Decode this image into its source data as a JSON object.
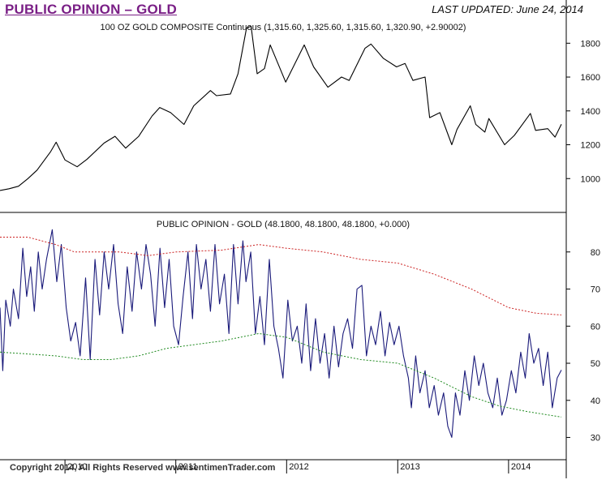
{
  "header": {
    "title": "PUBLIC OPINION – GOLD",
    "last_updated_label": "LAST UPDATED:",
    "last_updated_date": "June 24, 2014"
  },
  "footer": {
    "copyright": "Copyright 2014, All Rights Reserved   www.sentimenTrader.com"
  },
  "chart_data": [
    {
      "type": "line",
      "title": "100 OZ GOLD COMPOSITE Continuous (1,315.60, 1,325.60, 1,315.60, 1,320.90, +2.90002)",
      "ylim": [
        800,
        1950
      ],
      "y_ticks": [
        1000,
        1200,
        1400,
        1600,
        1800
      ],
      "grid": false,
      "color": "#000000",
      "series": [
        {
          "points": [
            [
              "2009-06-01",
              930
            ],
            [
              "2009-07-01",
              940
            ],
            [
              "2009-08-01",
              955
            ],
            [
              "2009-09-01",
              1000
            ],
            [
              "2009-10-01",
              1050
            ],
            [
              "2009-11-15",
              1160
            ],
            [
              "2009-12-03",
              1215
            ],
            [
              "2010-01-01",
              1110
            ],
            [
              "2010-02-10",
              1070
            ],
            [
              "2010-03-15",
              1115
            ],
            [
              "2010-05-10",
              1210
            ],
            [
              "2010-06-15",
              1250
            ],
            [
              "2010-07-20",
              1180
            ],
            [
              "2010-09-01",
              1250
            ],
            [
              "2010-10-15",
              1370
            ],
            [
              "2010-11-09",
              1420
            ],
            [
              "2010-12-15",
              1390
            ],
            [
              "2011-01-28",
              1320
            ],
            [
              "2011-03-01",
              1430
            ],
            [
              "2011-04-25",
              1520
            ],
            [
              "2011-05-15",
              1490
            ],
            [
              "2011-06-30",
              1500
            ],
            [
              "2011-07-25",
              1620
            ],
            [
              "2011-08-22",
              1890
            ],
            [
              "2011-09-06",
              1900
            ],
            [
              "2011-09-26",
              1620
            ],
            [
              "2011-10-20",
              1650
            ],
            [
              "2011-11-08",
              1790
            ],
            [
              "2011-12-29",
              1570
            ],
            [
              "2012-02-28",
              1790
            ],
            [
              "2012-03-30",
              1660
            ],
            [
              "2012-05-16",
              1540
            ],
            [
              "2012-06-30",
              1600
            ],
            [
              "2012-07-25",
              1580
            ],
            [
              "2012-09-15",
              1770
            ],
            [
              "2012-10-05",
              1795
            ],
            [
              "2012-11-15",
              1710
            ],
            [
              "2012-12-28",
              1660
            ],
            [
              "2013-01-25",
              1680
            ],
            [
              "2013-02-20",
              1580
            ],
            [
              "2013-04-01",
              1600
            ],
            [
              "2013-04-16",
              1360
            ],
            [
              "2013-05-20",
              1390
            ],
            [
              "2013-06-28",
              1200
            ],
            [
              "2013-07-15",
              1290
            ],
            [
              "2013-08-28",
              1430
            ],
            [
              "2013-09-15",
              1320
            ],
            [
              "2013-10-15",
              1275
            ],
            [
              "2013-10-28",
              1355
            ],
            [
              "2013-12-19",
              1200
            ],
            [
              "2014-01-20",
              1255
            ],
            [
              "2014-03-14",
              1385
            ],
            [
              "2014-03-31",
              1285
            ],
            [
              "2014-05-10",
              1295
            ],
            [
              "2014-06-03",
              1245
            ],
            [
              "2014-06-24",
              1321
            ]
          ]
        }
      ]
    },
    {
      "type": "line",
      "title": "PUBLIC OPINION - GOLD (48.1800, 48.1800, 48.1800, +0.000)",
      "ylim": [
        24,
        90
      ],
      "y_ticks": [
        30,
        40,
        50,
        60,
        70,
        80
      ],
      "x_ticks": [
        "2010",
        "2011",
        "2012",
        "2013",
        "2014"
      ],
      "grid": false,
      "series": [
        {
          "color": "#1a1a7a",
          "points": [
            [
              "2009-06-01",
              65
            ],
            [
              "2009-06-10",
              48
            ],
            [
              "2009-06-20",
              67
            ],
            [
              "2009-07-05",
              60
            ],
            [
              "2009-07-15",
              70
            ],
            [
              "2009-08-01",
              62
            ],
            [
              "2009-08-15",
              81
            ],
            [
              "2009-08-28",
              68
            ],
            [
              "2009-09-10",
              76
            ],
            [
              "2009-09-22",
              64
            ],
            [
              "2009-10-05",
              80
            ],
            [
              "2009-10-18",
              70
            ],
            [
              "2009-11-01",
              78
            ],
            [
              "2009-11-20",
              86
            ],
            [
              "2009-12-05",
              72
            ],
            [
              "2009-12-20",
              82
            ],
            [
              "2010-01-05",
              65
            ],
            [
              "2010-01-20",
              56
            ],
            [
              "2010-02-05",
              61
            ],
            [
              "2010-02-20",
              52
            ],
            [
              "2010-03-10",
              73
            ],
            [
              "2010-03-25",
              51
            ],
            [
              "2010-04-10",
              78
            ],
            [
              "2010-04-25",
              63
            ],
            [
              "2010-05-10",
              80
            ],
            [
              "2010-05-25",
              70
            ],
            [
              "2010-06-10",
              82
            ],
            [
              "2010-06-25",
              66
            ],
            [
              "2010-07-10",
              58
            ],
            [
              "2010-07-25",
              76
            ],
            [
              "2010-08-10",
              64
            ],
            [
              "2010-08-25",
              80
            ],
            [
              "2010-09-10",
              70
            ],
            [
              "2010-09-25",
              82
            ],
            [
              "2010-10-10",
              74
            ],
            [
              "2010-10-25",
              60
            ],
            [
              "2010-11-10",
              81
            ],
            [
              "2010-11-25",
              65
            ],
            [
              "2010-12-10",
              78
            ],
            [
              "2010-12-25",
              60
            ],
            [
              "2011-01-10",
              55
            ],
            [
              "2011-01-25",
              68
            ],
            [
              "2011-02-10",
              80
            ],
            [
              "2011-02-25",
              62
            ],
            [
              "2011-03-10",
              82
            ],
            [
              "2011-03-25",
              70
            ],
            [
              "2011-04-10",
              78
            ],
            [
              "2011-04-25",
              64
            ],
            [
              "2011-05-10",
              82
            ],
            [
              "2011-05-25",
              66
            ],
            [
              "2011-06-10",
              74
            ],
            [
              "2011-06-25",
              58
            ],
            [
              "2011-07-10",
              82
            ],
            [
              "2011-07-25",
              66
            ],
            [
              "2011-08-10",
              83
            ],
            [
              "2011-08-20",
              72
            ],
            [
              "2011-09-05",
              80
            ],
            [
              "2011-09-20",
              58
            ],
            [
              "2011-10-05",
              68
            ],
            [
              "2011-10-20",
              55
            ],
            [
              "2011-11-05",
              78
            ],
            [
              "2011-11-20",
              60
            ],
            [
              "2011-12-05",
              54
            ],
            [
              "2011-12-20",
              46
            ],
            [
              "2012-01-05",
              67
            ],
            [
              "2012-01-20",
              56
            ],
            [
              "2012-02-05",
              60
            ],
            [
              "2012-02-20",
              50
            ],
            [
              "2012-03-05",
              66
            ],
            [
              "2012-03-20",
              48
            ],
            [
              "2012-04-05",
              62
            ],
            [
              "2012-04-20",
              50
            ],
            [
              "2012-05-05",
              58
            ],
            [
              "2012-05-20",
              46
            ],
            [
              "2012-06-05",
              60
            ],
            [
              "2012-06-20",
              49
            ],
            [
              "2012-07-05",
              58
            ],
            [
              "2012-07-20",
              62
            ],
            [
              "2012-08-05",
              54
            ],
            [
              "2012-08-20",
              70
            ],
            [
              "2012-09-05",
              71
            ],
            [
              "2012-09-20",
              52
            ],
            [
              "2012-10-05",
              60
            ],
            [
              "2012-10-20",
              55
            ],
            [
              "2012-11-05",
              64
            ],
            [
              "2012-11-20",
              52
            ],
            [
              "2012-12-05",
              61
            ],
            [
              "2012-12-20",
              55
            ],
            [
              "2013-01-05",
              60
            ],
            [
              "2013-01-20",
              52
            ],
            [
              "2013-02-05",
              46
            ],
            [
              "2013-02-15",
              38
            ],
            [
              "2013-03-01",
              52
            ],
            [
              "2013-03-15",
              42
            ],
            [
              "2013-04-01",
              48
            ],
            [
              "2013-04-15",
              38
            ],
            [
              "2013-05-01",
              44
            ],
            [
              "2013-05-15",
              36
            ],
            [
              "2013-06-01",
              42
            ],
            [
              "2013-06-15",
              33
            ],
            [
              "2013-06-28",
              30
            ],
            [
              "2013-07-10",
              42
            ],
            [
              "2013-07-25",
              36
            ],
            [
              "2013-08-10",
              48
            ],
            [
              "2013-08-25",
              40
            ],
            [
              "2013-09-10",
              52
            ],
            [
              "2013-09-25",
              44
            ],
            [
              "2013-10-10",
              50
            ],
            [
              "2013-10-25",
              42
            ],
            [
              "2013-11-10",
              38
            ],
            [
              "2013-11-25",
              46
            ],
            [
              "2013-12-10",
              36
            ],
            [
              "2013-12-25",
              40
            ],
            [
              "2014-01-10",
              48
            ],
            [
              "2014-01-25",
              42
            ],
            [
              "2014-02-10",
              53
            ],
            [
              "2014-02-25",
              46
            ],
            [
              "2014-03-10",
              58
            ],
            [
              "2014-03-25",
              50
            ],
            [
              "2014-04-10",
              54
            ],
            [
              "2014-04-25",
              44
            ],
            [
              "2014-05-10",
              53
            ],
            [
              "2014-05-25",
              38
            ],
            [
              "2014-06-10",
              46
            ],
            [
              "2014-06-24",
              48.18
            ]
          ]
        },
        {
          "color": "#cc2222",
          "style": "dotted",
          "points": [
            [
              "2009-06-01",
              84
            ],
            [
              "2009-09-01",
              84
            ],
            [
              "2009-12-01",
              82
            ],
            [
              "2010-02-01",
              80
            ],
            [
              "2010-04-01",
              80
            ],
            [
              "2010-07-01",
              80
            ],
            [
              "2010-10-01",
              79
            ],
            [
              "2011-01-01",
              80
            ],
            [
              "2011-06-01",
              80.5
            ],
            [
              "2011-10-01",
              82
            ],
            [
              "2012-01-01",
              81
            ],
            [
              "2012-05-01",
              80
            ],
            [
              "2012-09-01",
              78
            ],
            [
              "2013-01-01",
              77
            ],
            [
              "2013-05-01",
              74
            ],
            [
              "2013-09-01",
              70
            ],
            [
              "2014-01-01",
              65
            ],
            [
              "2014-04-01",
              63.5
            ],
            [
              "2014-06-24",
              63
            ]
          ]
        },
        {
          "color": "#1f8a1f",
          "style": "dotted",
          "points": [
            [
              "2009-06-01",
              53
            ],
            [
              "2009-09-01",
              52.5
            ],
            [
              "2009-12-01",
              52
            ],
            [
              "2010-03-01",
              51
            ],
            [
              "2010-06-01",
              51
            ],
            [
              "2010-09-01",
              52
            ],
            [
              "2010-12-01",
              54
            ],
            [
              "2011-03-01",
              55
            ],
            [
              "2011-06-01",
              56
            ],
            [
              "2011-10-01",
              58
            ],
            [
              "2012-01-01",
              57
            ],
            [
              "2012-05-01",
              53
            ],
            [
              "2012-09-01",
              51
            ],
            [
              "2013-01-01",
              50
            ],
            [
              "2013-05-01",
              46
            ],
            [
              "2013-09-01",
              41
            ],
            [
              "2013-12-01",
              38.5
            ],
            [
              "2014-03-01",
              37
            ],
            [
              "2014-06-24",
              35.5
            ]
          ]
        }
      ]
    }
  ]
}
